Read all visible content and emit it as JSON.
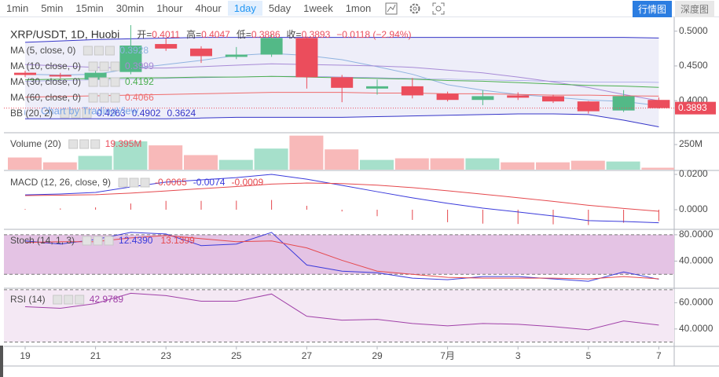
{
  "toolbar": {
    "intervals": [
      "1min",
      "5min",
      "15min",
      "30min",
      "1hour",
      "4hour",
      "1day",
      "5day",
      "1week",
      "1mon"
    ],
    "active_interval": 6,
    "views": [
      "行情图",
      "深度图"
    ],
    "active_view": 0
  },
  "chart_data": [
    {
      "type": "candlestick",
      "title": "XRP/USDT, 1D, Huobi",
      "ohlc_labels": [
        "开=",
        "高=",
        "低=",
        "收="
      ],
      "change_label": "−0.0118 (−2.94%)",
      "watermark": "Chart by TradingView",
      "categories": [
        "19",
        null,
        "21",
        null,
        "23",
        null,
        "25",
        null,
        "27",
        null,
        "29",
        null,
        "7月",
        null,
        "3",
        null,
        "5",
        null,
        "7"
      ],
      "open": [
        0.4402,
        0.437,
        0.4304,
        0.4413,
        0.4815,
        0.475,
        0.463,
        0.4663,
        0.4902,
        0.4337,
        0.4174,
        0.4207,
        0.4098,
        0.4011,
        0.4076,
        0.4065,
        0.3989,
        0.3859,
        0.4011
      ],
      "high": [
        0.443,
        0.44,
        0.45,
        0.5087,
        0.4902,
        0.4783,
        0.4772,
        0.4957,
        0.4924,
        0.437,
        0.4304,
        0.4326,
        0.413,
        0.4152,
        0.412,
        0.4087,
        0.3995,
        0.4152,
        0.4047
      ],
      "low": [
        0.434,
        0.432,
        0.425,
        0.438,
        0.4717,
        0.4543,
        0.4598,
        0.463,
        0.4174,
        0.3978,
        0.4087,
        0.4033,
        0.3989,
        0.3935,
        0.401,
        0.3967,
        0.3815,
        0.3837,
        0.3886
      ],
      "close": [
        0.437,
        0.4348,
        0.4402,
        0.4793,
        0.475,
        0.4641,
        0.4663,
        0.4902,
        0.4337,
        0.4185,
        0.4207,
        0.4076,
        0.4011,
        0.4065,
        0.4043,
        0.3989,
        0.3848,
        0.4065,
        0.3893
      ],
      "up_color": "#53b987",
      "down_color": "#eb4d5c",
      "series": [
        {
          "name": "MA (5, close, 0)",
          "color": "#8fb3e0",
          "values": [
            0.438,
            0.437,
            0.438,
            0.446,
            0.452,
            0.458,
            0.465,
            0.468,
            0.465,
            0.459,
            0.449,
            0.438,
            0.423,
            0.415,
            0.409,
            0.405,
            0.401,
            0.399,
            0.3928
          ]
        },
        {
          "name": "MA (10, close, 0)",
          "color": "#a78ad6",
          "values": [
            0.452,
            0.45,
            0.448,
            0.447,
            0.447,
            0.449,
            0.451,
            0.453,
            0.452,
            0.451,
            0.45,
            0.448,
            0.444,
            0.44,
            0.434,
            0.427,
            0.419,
            0.409,
            0.3999
          ]
        },
        {
          "name": "MA (30, close, 0)",
          "color": "#4caf50",
          "values": [
            0.43,
            0.431,
            0.432,
            0.433,
            0.433,
            0.434,
            0.434,
            0.435,
            0.434,
            0.433,
            0.432,
            0.431,
            0.429,
            0.428,
            0.426,
            0.424,
            0.422,
            0.421,
            0.4192
          ]
        },
        {
          "name": "MA (60, close, 0)",
          "color": "#ef6c6c",
          "values": [
            0.405,
            0.406,
            0.407,
            0.408,
            0.409,
            0.41,
            0.411,
            0.412,
            0.412,
            0.412,
            0.411,
            0.411,
            0.41,
            0.41,
            0.409,
            0.408,
            0.408,
            0.407,
            0.4066
          ]
        }
      ],
      "bb": {
        "name": "BB (20, 2)",
        "color": "#3535c8",
        "fill": "#eeeef9",
        "middle": [
          0.428,
          0.429,
          0.43,
          0.431,
          0.432,
          0.433,
          0.434,
          0.435,
          0.435,
          0.434,
          0.433,
          0.432,
          0.431,
          0.43,
          0.429,
          0.428,
          0.427,
          0.427,
          0.4263
        ],
        "upper": [
          0.484,
          0.486,
          0.488,
          0.489,
          0.49,
          0.491,
          0.491,
          0.491,
          0.491,
          0.491,
          0.491,
          0.491,
          0.491,
          0.491,
          0.491,
          0.491,
          0.491,
          0.491,
          0.4902
        ],
        "lower": [
          0.374,
          0.374,
          0.374,
          0.374,
          0.374,
          0.375,
          0.376,
          0.376,
          0.376,
          0.376,
          0.377,
          0.378,
          0.379,
          0.38,
          0.381,
          0.381,
          0.38,
          0.372,
          0.3624
        ]
      },
      "ylim": [
        0.355,
        0.52
      ],
      "yticks": [
        {
          "value": 0.5,
          "label": "0.5000"
        },
        {
          "value": 0.45,
          "label": "0.4500"
        },
        {
          "value": 0.4,
          "label": "0.4000"
        }
      ]
    },
    {
      "type": "bar",
      "title": "Volume (20)",
      "legend_label": "19.395M",
      "up_color": "#a6e0cb",
      "down_color": "#f8b9b9",
      "values": [
        121000000,
        73000000,
        137000000,
        282000000,
        242000000,
        145000000,
        97000000,
        210000000,
        339000000,
        202000000,
        97000000,
        113000000,
        113000000,
        113000000,
        73000000,
        73000000,
        89000000,
        81000000,
        19395000
      ],
      "ylim": [
        0,
        360000000
      ],
      "yticks": [
        {
          "value": 250000000,
          "label": "250M"
        }
      ]
    },
    {
      "type": "macd",
      "title": "MACD (12, 26, close, 9)",
      "series": [
        {
          "style": "histogram",
          "color": "#e5484d",
          "values": [
            0.0004,
            0.0007,
            0.0013,
            0.0035,
            0.005,
            0.005,
            0.0051,
            0.0055,
            0.0022,
            -0.001,
            -0.0037,
            -0.0058,
            -0.0071,
            -0.0079,
            -0.0081,
            -0.0083,
            -0.0087,
            -0.0074,
            -0.0065
          ]
        },
        {
          "style": "line",
          "color": "#3a3adb",
          "values": [
            0.0084,
            0.0089,
            0.0098,
            0.0129,
            0.0156,
            0.0169,
            0.0182,
            0.02,
            0.0173,
            0.0138,
            0.0102,
            0.0067,
            0.0036,
            0.0009,
            -0.0013,
            -0.0036,
            -0.0062,
            -0.0067,
            -0.0074
          ]
        },
        {
          "style": "line",
          "color": "#e5484d",
          "values": [
            0.008,
            0.0082,
            0.0085,
            0.0094,
            0.0106,
            0.0119,
            0.0131,
            0.0145,
            0.0151,
            0.0148,
            0.0139,
            0.0125,
            0.0107,
            0.0088,
            0.0068,
            0.0047,
            0.0025,
            0.0007,
            -0.0009
          ]
        }
      ],
      "ylim": [
        -0.0107,
        0.0218
      ],
      "yticks": [
        {
          "value": 0.02,
          "label": "0.0200"
        },
        {
          "value": 0,
          "label": "0.0000"
        }
      ]
    },
    {
      "type": "line",
      "title": "Stoch (14, 1, 3)",
      "bands": [
        20,
        80
      ],
      "band_color": "#e4c3e4",
      "series": [
        {
          "color": "#3a3adb",
          "legend_label": "12.4390",
          "values": [
            70.6,
            65.9,
            72.9,
            83.5,
            81.2,
            63.5,
            65.9,
            83.5,
            34.1,
            24.7,
            22.4,
            14.1,
            11.8,
            16.5,
            16.5,
            12.9,
            9.4,
            23.5,
            12.439
          ]
        },
        {
          "color": "#e5484d",
          "values": [
            68.2,
            69.4,
            69.4,
            75.3,
            78.8,
            74.1,
            69.4,
            70.6,
            60.0,
            41.2,
            24.7,
            20.0,
            15.3,
            14.1,
            14.1,
            14.1,
            12.9,
            16.5,
            13.1399
          ]
        }
      ],
      "ylim": [
        0,
        87
      ],
      "yticks": [
        {
          "value": 80,
          "label": "80.0000"
        },
        {
          "value": 40,
          "label": "40.0000"
        }
      ]
    },
    {
      "type": "line",
      "title": "RSI (14)",
      "bands": [
        30,
        70
      ],
      "band_color": "#f4e8f4",
      "series": [
        {
          "color": "#a040a8",
          "values": [
            57.0,
            55.8,
            59.4,
            67.3,
            65.5,
            61.2,
            61.2,
            66.7,
            49.7,
            46.7,
            47.3,
            44.2,
            42.4,
            44.2,
            43.6,
            41.8,
            39.4,
            46.1,
            42.9789
          ]
        }
      ],
      "ylim": [
        26.7,
        70.5
      ],
      "yticks": [
        {
          "value": 60,
          "label": "60.0000"
        },
        {
          "value": 40,
          "label": "40.0000"
        }
      ]
    }
  ]
}
